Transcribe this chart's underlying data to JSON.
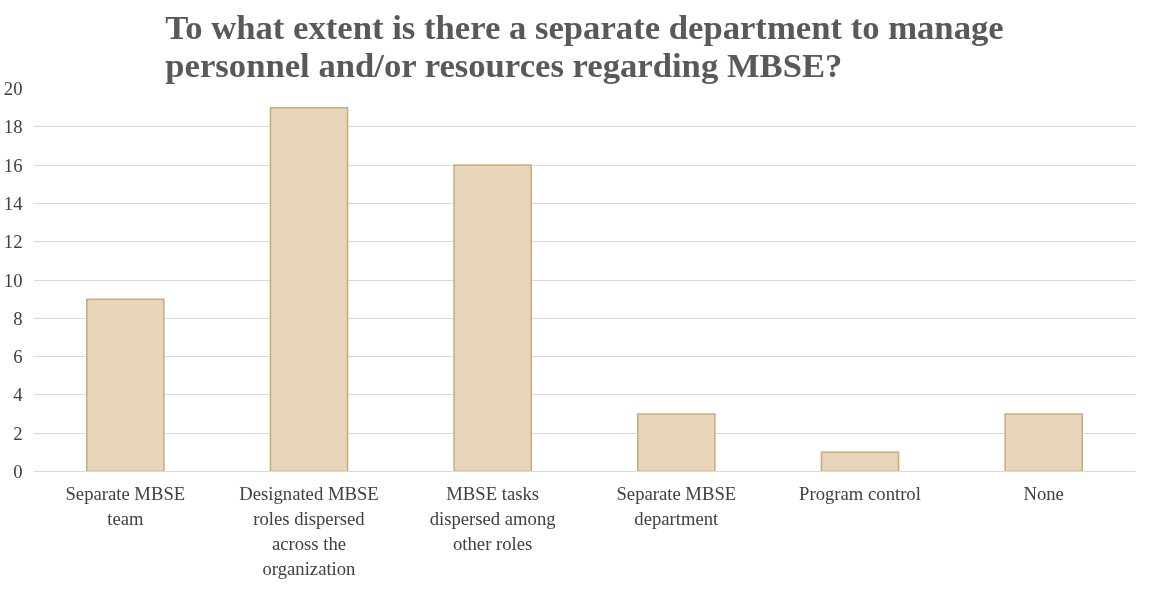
{
  "chart_data": {
    "type": "bar",
    "title": "To what extent is there a separate department to manage personnel and/or resources regarding MBSE?",
    "categories": [
      "Separate MBSE team",
      "Designated MBSE roles dispersed across the organization",
      "MBSE tasks dispersed among other roles",
      "Separate MBSE department",
      "Program control",
      "None"
    ],
    "values": [
      9,
      19,
      16,
      3,
      1,
      3
    ],
    "color": "#e6d5b8",
    "ylim": [
      0,
      20
    ],
    "yticks": [
      0,
      2,
      4,
      6,
      8,
      10,
      12,
      14,
      16,
      18,
      20
    ],
    "grid": "y"
  }
}
